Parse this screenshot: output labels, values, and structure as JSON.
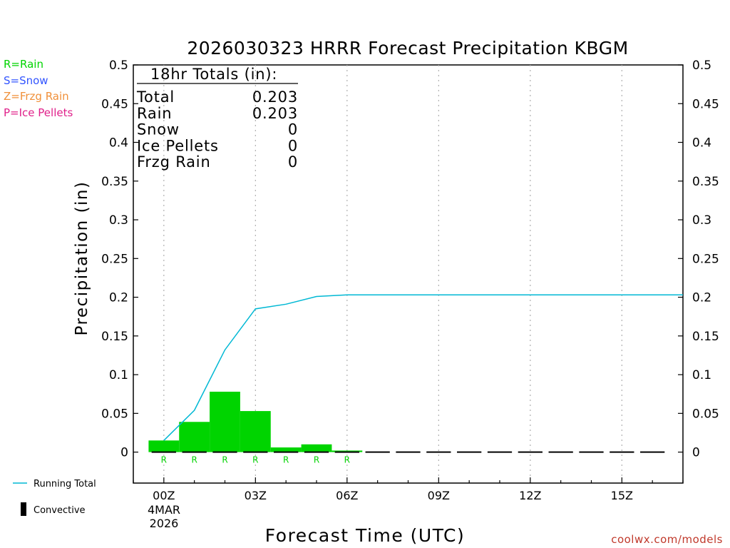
{
  "chart_data": {
    "type": "bar",
    "title": "2026030323 HRRR Forecast Precipitation KBGM",
    "xlabel": "Forecast Time (UTC)",
    "ylabel": "Precipitation (in)",
    "ylim": [
      -0.04,
      0.5
    ],
    "xlim": [
      -1,
      17
    ],
    "yticks": [
      {
        "value": 0,
        "label": "0"
      },
      {
        "value": 0.05,
        "label": "0.05"
      },
      {
        "value": 0.1,
        "label": "0.1"
      },
      {
        "value": 0.15,
        "label": "0.15"
      },
      {
        "value": 0.2,
        "label": "0.2"
      },
      {
        "value": 0.25,
        "label": "0.25"
      },
      {
        "value": 0.3,
        "label": "0.3"
      },
      {
        "value": 0.35,
        "label": "0.35"
      },
      {
        "value": 0.4,
        "label": "0.4"
      },
      {
        "value": 0.45,
        "label": "0.45"
      },
      {
        "value": 0.5,
        "label": "0.5"
      }
    ],
    "xticks": [
      {
        "value": 0,
        "label": "00Z"
      },
      {
        "value": 3,
        "label": "03Z"
      },
      {
        "value": 6,
        "label": "06Z"
      },
      {
        "value": 9,
        "label": "09Z"
      },
      {
        "value": 12,
        "label": "12Z"
      },
      {
        "value": 15,
        "label": "15Z"
      }
    ],
    "date_label": [
      "4MAR",
      "2026"
    ],
    "grid": "vertical dotted at 3-hour ticks",
    "bars": {
      "x": [
        0,
        1,
        2,
        3,
        4,
        5,
        6
      ],
      "values": [
        0.015,
        0.039,
        0.078,
        0.053,
        0.006,
        0.01,
        0.002
      ],
      "color": "#00d400"
    },
    "running_total": {
      "x": [
        0,
        1,
        2,
        3,
        4,
        5,
        6,
        7,
        8,
        9,
        10,
        11,
        12,
        13,
        14,
        15,
        16,
        17
      ],
      "values": [
        0.015,
        0.054,
        0.132,
        0.185,
        0.191,
        0.201,
        0.203,
        0.203,
        0.203,
        0.203,
        0.203,
        0.203,
        0.203,
        0.203,
        0.203,
        0.203,
        0.203,
        0.203
      ],
      "color": "#00b8d4"
    },
    "convective": {
      "x": [
        0,
        1,
        2,
        3,
        4,
        5,
        6,
        7,
        8,
        9,
        10,
        11,
        12,
        13,
        14,
        15,
        16
      ],
      "values": [
        0,
        0,
        0,
        0,
        0,
        0,
        0,
        0,
        0,
        0,
        0,
        0,
        0,
        0,
        0,
        0,
        0
      ]
    },
    "ptype_markers": {
      "x": [
        0,
        1,
        2,
        3,
        4,
        5,
        6
      ],
      "labels": [
        "R",
        "R",
        "R",
        "R",
        "R",
        "R",
        "R"
      ],
      "color": "#00d400"
    },
    "totals_box": {
      "heading": "18hr Totals (in):",
      "rows": [
        {
          "label": "Total",
          "value": "0.203"
        },
        {
          "label": "Rain",
          "value": "0.203"
        },
        {
          "label": "Snow",
          "value": "0"
        },
        {
          "label": "Ice Pellets",
          "value": "0"
        },
        {
          "label": "Frzg Rain",
          "value": "0"
        }
      ]
    },
    "ptype_legend": [
      {
        "label": "R=Rain",
        "color": "#00d400"
      },
      {
        "label": "S=Snow",
        "color": "#3355ff"
      },
      {
        "label": "Z=Frzg Rain",
        "color": "#f0903a"
      },
      {
        "label": "P=Ice Pellets",
        "color": "#e0208a"
      }
    ],
    "line_legend": [
      {
        "label": "Running Total",
        "symbol": "line",
        "color": "#00b8d4"
      },
      {
        "label": "Convective",
        "symbol": "bar",
        "color": "#000000"
      }
    ]
  },
  "credit": "coolwx.com/models"
}
